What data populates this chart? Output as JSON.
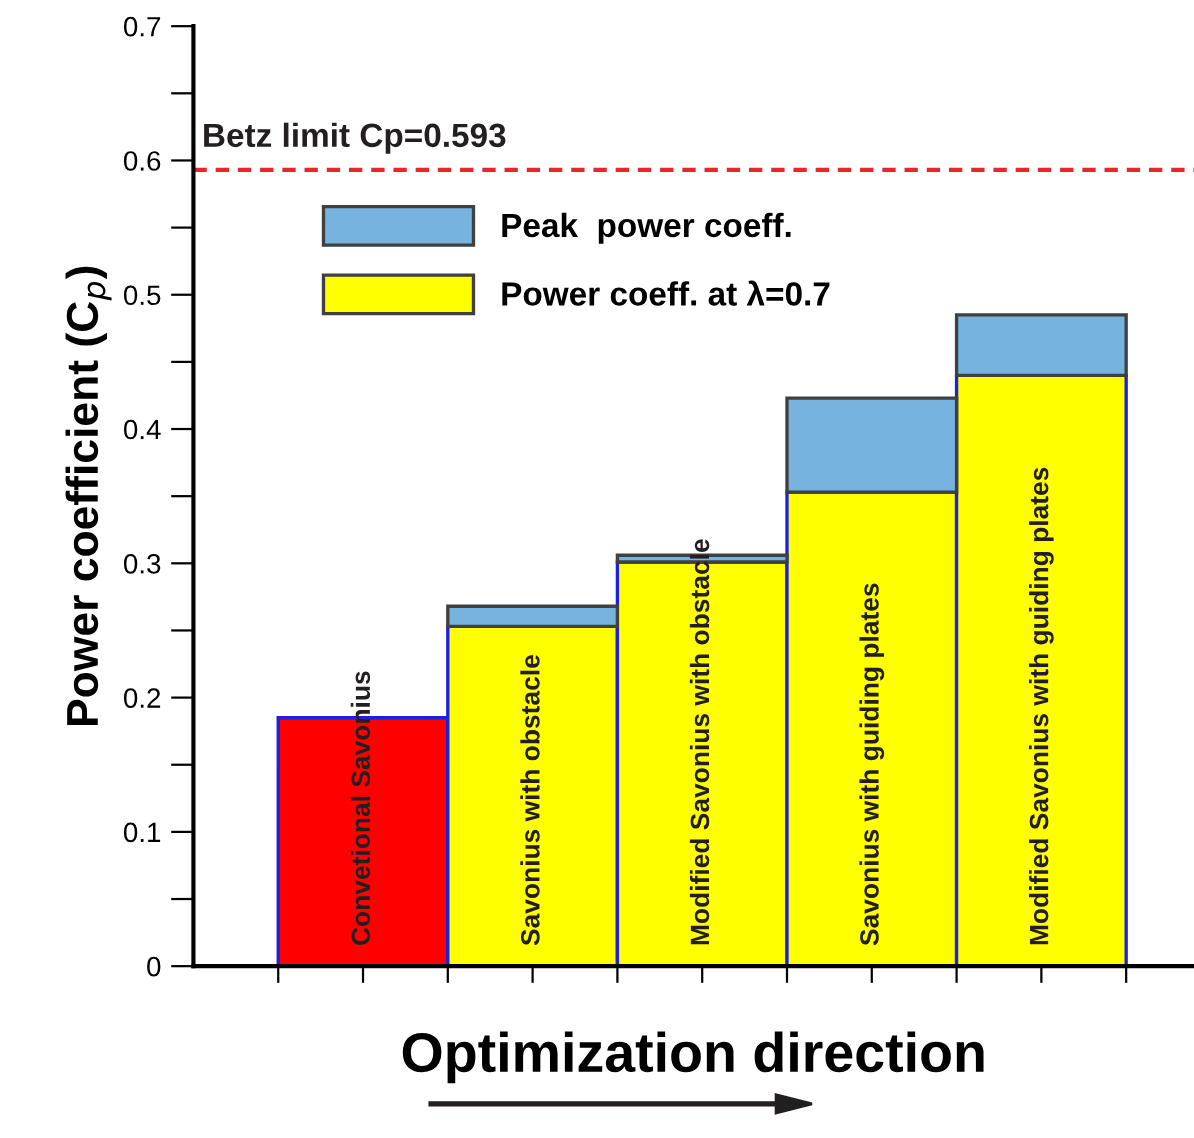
{
  "chart_data": {
    "type": "bar",
    "stacked": true,
    "xlabel": "Optimization direction",
    "ylabel": "Power coefficient (C$_{p}$)",
    "categories": [
      "Convetional Savonius",
      "Savonius with obstacle",
      "Modified Savonius with obstacle",
      "Savonius with guiding plates",
      "Modified Savonius with guiding plates"
    ],
    "series": [
      {
        "name": "Power coeff. at λ=0.7",
        "color": "#ffff00",
        "colors": [
          "#ff0000",
          "#ffff00",
          "#ffff00",
          "#ffff00",
          "#ffff00"
        ],
        "values": [
          0.185,
          0.253,
          0.301,
          0.353,
          0.44
        ]
      },
      {
        "name": "Peak  power coeff.",
        "color": "#77b3df",
        "values": [
          null,
          0.015,
          0.005,
          0.07,
          0.045
        ]
      }
    ],
    "ylim": [
      0,
      0.7
    ],
    "yticks": [
      0,
      {
        "value": 0.05,
        "label": null
      },
      0.1,
      {
        "value": 0.15,
        "label": null
      },
      0.2,
      {
        "value": 0.25,
        "label": null
      },
      0.3,
      {
        "value": 0.35,
        "label": null
      },
      0.4,
      {
        "value": 0.45,
        "label": null
      },
      0.5,
      {
        "value": 0.55,
        "label": null
      },
      0.6,
      {
        "value": 0.65,
        "label": null
      },
      0.7
    ],
    "ref_lines": [
      {
        "axis": "y",
        "value": 0.593,
        "label": "Betz limit Cp=0.593",
        "color": "#e8262b",
        "line_style": "dashed"
      }
    ],
    "legend": "top left",
    "grid": false
  }
}
